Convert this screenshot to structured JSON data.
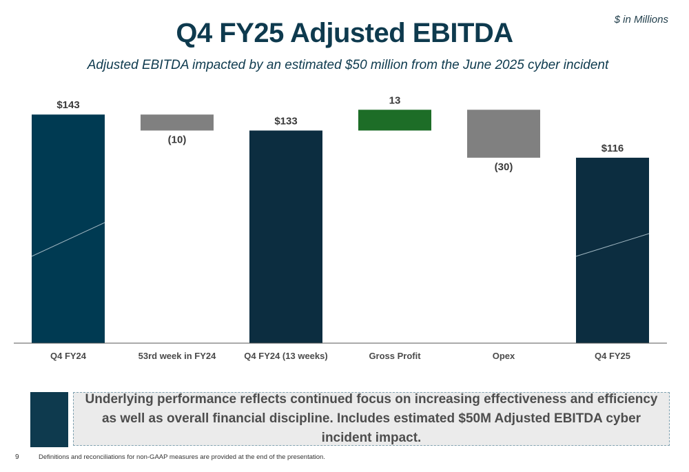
{
  "header": {
    "units": "$ in Millions",
    "title": "Q4 FY25 Adjusted EBITDA",
    "subtitle": "Adjusted EBITDA impacted by an estimated $50 million from the June 2025 cyber incident"
  },
  "chart_data": {
    "type": "bar",
    "subtype": "waterfall",
    "title": "",
    "xlabel": "",
    "ylabel": "",
    "categories": [
      "Q4 FY24",
      "53rd week in FY24",
      "Q4 FY24 (13 weeks)",
      "Gross Profit",
      "Opex",
      "Q4 FY25"
    ],
    "values": [
      143,
      -10,
      133,
      13,
      -30,
      116
    ],
    "kinds": [
      "total",
      "delta",
      "total",
      "delta",
      "delta",
      "total"
    ],
    "data_labels": [
      "$143",
      "(10)",
      "$133",
      "13",
      "(30)",
      "$116"
    ],
    "ylim": [
      0,
      150
    ],
    "grid": false,
    "colors": {
      "total_first": "#003a52",
      "total": "#0c2d40",
      "increase": "#1d6d27",
      "decrease": "#808080"
    }
  },
  "callout": {
    "text": "Underlying performance reflects continued focus on increasing effectiveness and efficiency as well as overall financial discipline. Includes estimated $50M Adjusted EBITDA cyber incident impact."
  },
  "footer": {
    "page_number": "9",
    "note": "Definitions and reconciliations for non-GAAP measures are provided at the end of the presentation."
  }
}
